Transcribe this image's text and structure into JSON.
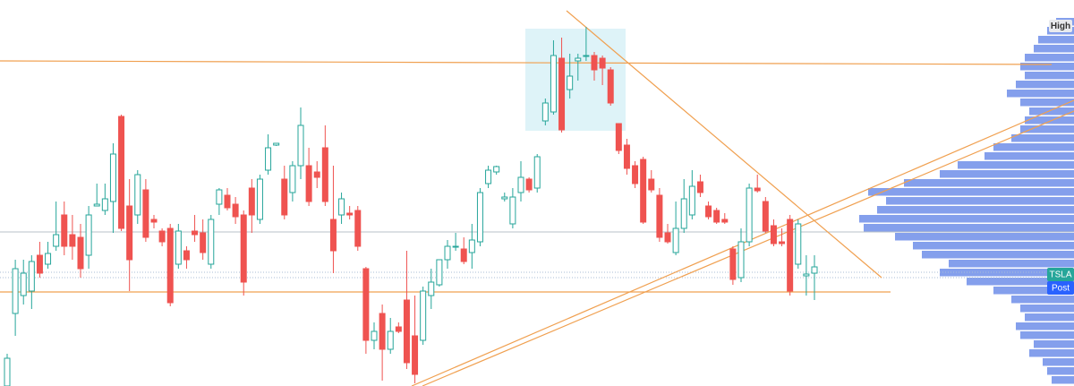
{
  "chart_data": {
    "type": "candlestick",
    "ylim": [
      0,
      431
    ],
    "up_color": "#26a69a",
    "down_color": "#ef5350",
    "open": [
      0,
      81,
      101,
      106,
      146,
      136,
      156,
      191,
      169,
      166,
      146,
      201,
      196,
      206,
      301,
      201,
      191,
      219,
      186,
      173,
      176,
      136,
      151,
      173,
      171,
      136,
      203,
      213,
      203,
      191,
      221,
      186,
      241,
      269,
      231,
      216,
      246,
      246,
      239,
      266,
      186,
      191,
      193,
      196,
      131,
      51,
      81,
      41,
      66,
      96,
      56,
      51,
      101,
      113,
      141,
      156,
      153,
      149,
      161,
      226,
      239,
      209,
      181,
      216,
      231,
      221,
      296,
      306,
      366,
      331,
      363,
      369,
      369,
      366,
      353,
      293,
      269,
      246,
      253,
      231,
      213,
      171,
      149,
      176,
      191,
      228,
      201,
      196,
      186,
      153,
      121,
      161,
      221,
      206,
      179,
      161,
      186,
      136,
      123,
      126
    ],
    "high": [
      36,
      141,
      141,
      146,
      161,
      161,
      206,
      206,
      191,
      181,
      201,
      226,
      226,
      271,
      303,
      231,
      241,
      231,
      191,
      176,
      181,
      181,
      156,
      191,
      186,
      191,
      221,
      221,
      211,
      196,
      231,
      236,
      281,
      271,
      246,
      251,
      311,
      266,
      251,
      291,
      246,
      216,
      201,
      201,
      133,
      71,
      91,
      76,
      71,
      151,
      101,
      111,
      131,
      141,
      163,
      171,
      166,
      181,
      221,
      246,
      246,
      216,
      221,
      251,
      233,
      259,
      321,
      386,
      389,
      371,
      371,
      401,
      373,
      369,
      356,
      293,
      276,
      251,
      256,
      241,
      221,
      181,
      206,
      231,
      241,
      236,
      206,
      199,
      193,
      156,
      176,
      226,
      236,
      211,
      186,
      176,
      191,
      186,
      146,
      146
    ],
    "low": [
      0,
      56,
      91,
      86,
      121,
      131,
      151,
      146,
      141,
      121,
      131,
      201,
      191,
      171,
      173,
      106,
      181,
      161,
      176,
      156,
      89,
      131,
      131,
      161,
      141,
      131,
      191,
      196,
      181,
      101,
      171,
      181,
      236,
      268,
      186,
      206,
      231,
      201,
      221,
      201,
      126,
      181,
      186,
      151,
      36,
      41,
      6,
      36,
      59,
      19,
      3,
      46,
      86,
      111,
      131,
      151,
      136,
      131,
      156,
      221,
      236,
      206,
      176,
      206,
      216,
      216,
      291,
      303,
      283,
      321,
      341,
      363,
      341,
      336,
      313,
      259,
      236,
      221,
      181,
      216,
      161,
      159,
      146,
      171,
      186,
      211,
      186,
      181,
      181,
      113,
      116,
      156,
      216,
      171,
      156,
      156,
      101,
      131,
      101,
      96
    ],
    "close": [
      31,
      131,
      126,
      139,
      126,
      148,
      169,
      156,
      156,
      131,
      191,
      203,
      209,
      259,
      176,
      141,
      236,
      166,
      183,
      161,
      93,
      173,
      141,
      169,
      149,
      186,
      219,
      199,
      189,
      116,
      191,
      231,
      266,
      271,
      191,
      246,
      291,
      206,
      233,
      206,
      151,
      209,
      191,
      156,
      51,
      61,
      41,
      61,
      61,
      26,
      13,
      106,
      116,
      141,
      156,
      156,
      139,
      163,
      216,
      241,
      245,
      211,
      211,
      233,
      219,
      256,
      316,
      369,
      286,
      346,
      366,
      369,
      353,
      355,
      316,
      263,
      243,
      226,
      183,
      219,
      166,
      161,
      176,
      209,
      223,
      216,
      189,
      183,
      183,
      119,
      161,
      221,
      218,
      173,
      159,
      159,
      106,
      181,
      125,
      133
    ],
    "volume_profile": {
      "color": "#5b7fe6",
      "values": [
        20,
        30,
        40,
        45,
        55,
        60,
        55,
        65,
        75,
        60,
        50,
        55,
        60,
        70,
        90,
        100,
        130,
        150,
        190,
        230,
        210,
        220,
        240,
        235,
        200,
        180,
        170,
        140,
        150,
        120,
        90,
        70,
        60,
        55,
        65,
        60,
        45,
        50,
        35,
        30,
        25
      ]
    },
    "labels": {
      "high": "High",
      "symbol": "TSLA",
      "session": "Post"
    }
  }
}
